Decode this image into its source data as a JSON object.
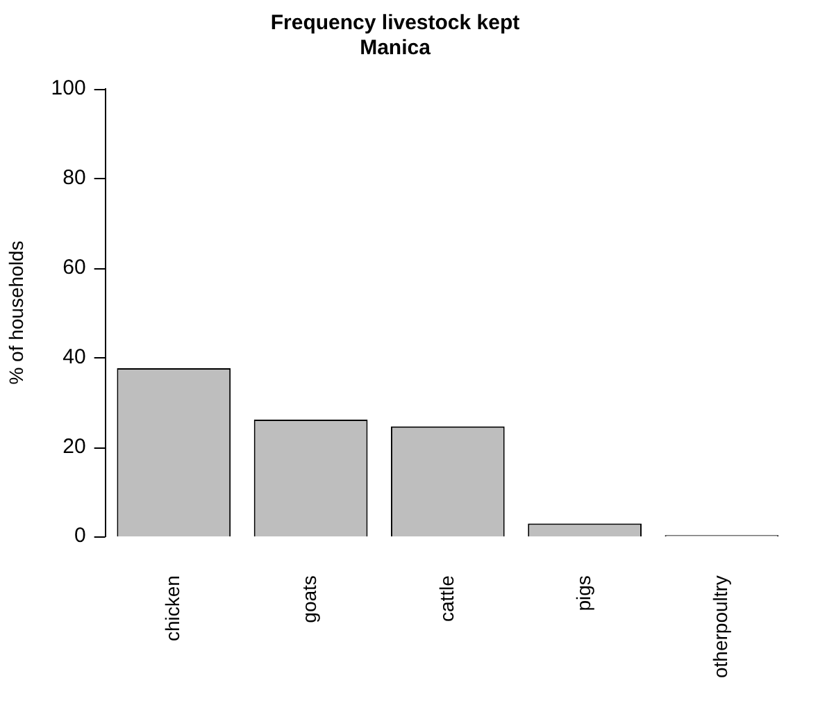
{
  "chart_data": {
    "type": "bar",
    "title": "Frequency livestock kept",
    "subtitle": "Manica",
    "ylabel": "% of households",
    "categories": [
      "chicken",
      "goats",
      "cattle",
      "pigs",
      "otherpoultry"
    ],
    "values": [
      37.6,
      26.1,
      24.6,
      2.9,
      0.3
    ],
    "color": "#bebebe",
    "ylim": [
      0,
      100
    ],
    "yticks": [
      0,
      20,
      40,
      60,
      80,
      100
    ],
    "grid": false,
    "legend": false
  }
}
